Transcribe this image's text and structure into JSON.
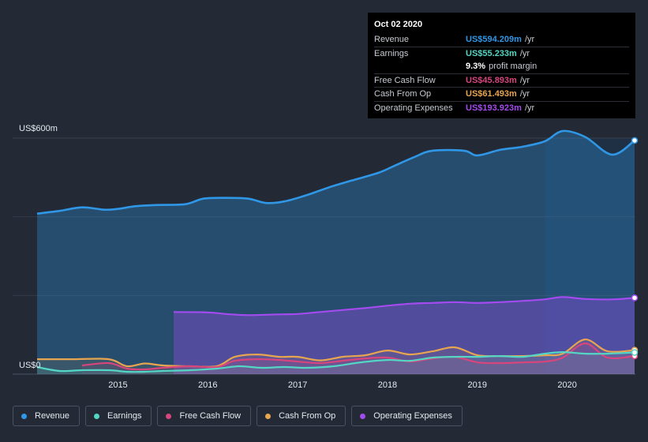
{
  "chart_data": {
    "type": "area",
    "y_axis_top_label": "US$600m",
    "y_axis_bottom_label": "US$0",
    "ylim": [
      0,
      600
    ],
    "xlim": [
      2014.1,
      2020.75
    ],
    "x_ticks": [
      "2015",
      "2016",
      "2017",
      "2018",
      "2019",
      "2020"
    ],
    "forecast_start": 2019.75,
    "series": [
      {
        "name": "Revenue",
        "color": "#2f97e6",
        "x": [
          2014.1,
          2014.35,
          2014.6,
          2014.85,
          2015.0,
          2015.2,
          2015.45,
          2015.75,
          2015.95,
          2016.2,
          2016.45,
          2016.65,
          2016.85,
          2017.1,
          2017.35,
          2017.6,
          2017.9,
          2018.1,
          2018.3,
          2018.5,
          2018.85,
          2019.0,
          2019.25,
          2019.5,
          2019.75,
          2019.95,
          2020.2,
          2020.5,
          2020.75
        ],
        "values": [
          408,
          415,
          424,
          418,
          420,
          427,
          430,
          432,
          446,
          448,
          446,
          435,
          439,
          455,
          475,
          492,
          512,
          532,
          552,
          568,
          568,
          556,
          570,
          578,
          592,
          618,
          603,
          558,
          594
        ]
      },
      {
        "name": "Operating Expenses",
        "color": "#a44bf0",
        "x": [
          2015.62,
          2016.0,
          2016.2,
          2016.45,
          2016.8,
          2017.0,
          2017.25,
          2017.5,
          2017.75,
          2018.0,
          2018.25,
          2018.5,
          2018.75,
          2019.0,
          2019.25,
          2019.5,
          2019.75,
          2019.95,
          2020.2,
          2020.5,
          2020.75
        ],
        "values": [
          158,
          157,
          153,
          150,
          152,
          153,
          158,
          163,
          168,
          174,
          179,
          181,
          183,
          181,
          183,
          186,
          190,
          196,
          191,
          190,
          194
        ]
      },
      {
        "name": "Cash From Op",
        "color": "#e8a550",
        "x": [
          2014.1,
          2014.5,
          2014.9,
          2015.1,
          2015.3,
          2015.5,
          2015.8,
          2016.1,
          2016.3,
          2016.55,
          2016.8,
          2017.0,
          2017.25,
          2017.5,
          2017.75,
          2018.0,
          2018.25,
          2018.5,
          2018.75,
          2019.0,
          2019.25,
          2019.5,
          2019.75,
          2019.95,
          2020.2,
          2020.45,
          2020.75
        ],
        "values": [
          38,
          38,
          38,
          20,
          27,
          22,
          20,
          20,
          44,
          50,
          44,
          44,
          35,
          44,
          48,
          60,
          50,
          58,
          68,
          48,
          46,
          46,
          48,
          52,
          88,
          58,
          61
        ]
      },
      {
        "name": "Free Cash Flow",
        "color": "#d6467d",
        "x": [
          2014.6,
          2014.9,
          2015.1,
          2015.3,
          2015.5,
          2015.8,
          2016.1,
          2016.3,
          2016.55,
          2016.8,
          2017.0,
          2017.25,
          2017.5,
          2017.75,
          2018.0,
          2018.25,
          2018.5,
          2018.75,
          2019.0,
          2019.25,
          2019.5,
          2019.75,
          2019.95,
          2020.2,
          2020.45,
          2020.75
        ],
        "values": [
          22,
          28,
          14,
          12,
          16,
          20,
          18,
          34,
          38,
          36,
          32,
          28,
          34,
          40,
          42,
          32,
          40,
          44,
          30,
          28,
          30,
          32,
          42,
          78,
          42,
          46
        ]
      },
      {
        "name": "Earnings",
        "color": "#54d6c4",
        "x": [
          2014.1,
          2014.35,
          2014.6,
          2014.9,
          2015.1,
          2015.3,
          2015.5,
          2015.8,
          2016.1,
          2016.35,
          2016.6,
          2016.85,
          2017.1,
          2017.4,
          2017.7,
          2018.0,
          2018.25,
          2018.5,
          2018.75,
          2019.0,
          2019.25,
          2019.5,
          2019.75,
          2019.95,
          2020.2,
          2020.45,
          2020.75
        ],
        "values": [
          18,
          8,
          10,
          10,
          6,
          6,
          8,
          10,
          14,
          20,
          16,
          18,
          16,
          20,
          30,
          36,
          34,
          42,
          44,
          44,
          46,
          44,
          52,
          56,
          52,
          52,
          55
        ]
      }
    ]
  },
  "tooltip": {
    "date": "Oct 02 2020",
    "revenue_label": "Revenue",
    "revenue_value": "US$594.209m",
    "revenue_color": "#2f97e6",
    "earnings_label": "Earnings",
    "earnings_value": "US$55.233m",
    "earnings_color": "#54d6c4",
    "profit_margin_value": "9.3%",
    "profit_margin_text": "profit margin",
    "fcf_label": "Free Cash Flow",
    "fcf_value": "US$45.893m",
    "fcf_color": "#d6467d",
    "cfo_label": "Cash From Op",
    "cfo_value": "US$61.493m",
    "cfo_color": "#e8a550",
    "opex_label": "Operating Expenses",
    "opex_value": "US$193.923m",
    "opex_color": "#a44bf0",
    "unit": "/yr"
  },
  "legend": [
    {
      "label": "Revenue",
      "color": "#2f97e6"
    },
    {
      "label": "Earnings",
      "color": "#54d6c4"
    },
    {
      "label": "Free Cash Flow",
      "color": "#d6467d"
    },
    {
      "label": "Cash From Op",
      "color": "#e8a550"
    },
    {
      "label": "Operating Expenses",
      "color": "#a44bf0"
    }
  ]
}
